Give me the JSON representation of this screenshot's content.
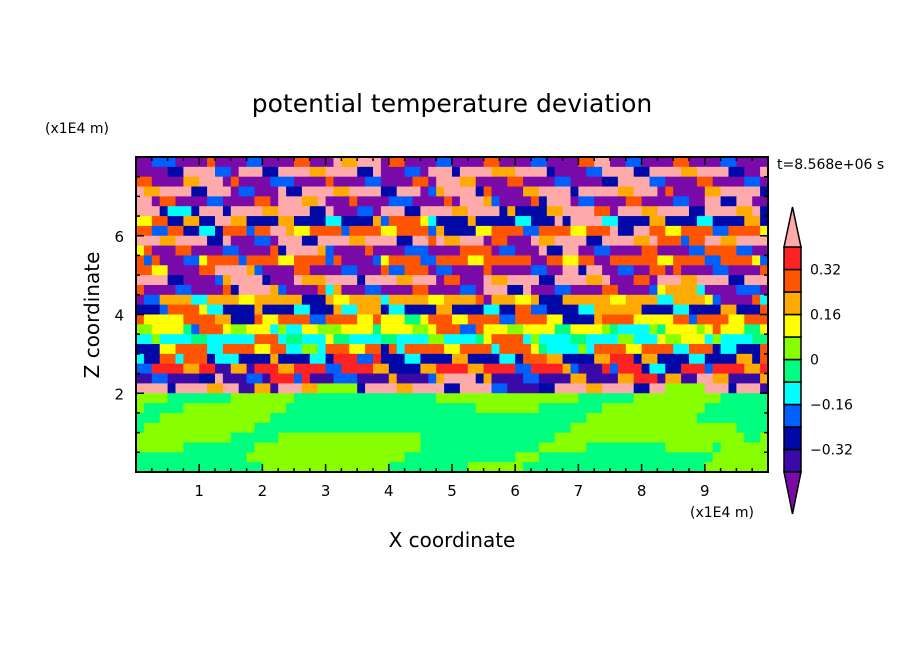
{
  "chart_data": {
    "type": "heatmap",
    "title": "potential temperature deviation",
    "xlabel": "X coordinate",
    "ylabel": "Z coordinate",
    "x_unit_label": "(x1E4 m)",
    "y_unit_label": "(x1E4 m)",
    "time_label": "t=8.568e+06 s",
    "xlim": [
      0,
      10
    ],
    "ylim": [
      0,
      8
    ],
    "x_ticks": [
      "1",
      "2",
      "3",
      "4",
      "5",
      "6",
      "7",
      "8",
      "9"
    ],
    "x_tick_values": [
      1,
      2,
      3,
      4,
      5,
      6,
      7,
      8,
      9
    ],
    "y_ticks": [
      "2",
      "4",
      "6"
    ],
    "y_tick_values": [
      2,
      4,
      6
    ],
    "colorbar": {
      "levels": [
        -0.4,
        -0.32,
        -0.24,
        -0.16,
        -0.08,
        0,
        0.08,
        0.16,
        0.24,
        0.32,
        0.4
      ],
      "colors": [
        "#7b0ba8",
        "#3a0aa8",
        "#0008a8",
        "#0060ff",
        "#00ffff",
        "#00ff80",
        "#88ff00",
        "#ffff00",
        "#ffaa00",
        "#ff5500",
        "#ff2222",
        "#ffaaaa"
      ],
      "tick_labels": [
        "0.32",
        "0.16",
        "0",
        "-0.16",
        "-0.32"
      ],
      "tick_values": [
        0.32,
        0.16,
        0,
        -0.16,
        -0.32
      ],
      "extend": "both"
    },
    "z_row_step": 0.25,
    "row_profile_top_down": [
      -0.45,
      0.45,
      -0.45,
      0.45,
      -0.45,
      0.45,
      -0.3,
      0.3,
      0.45,
      -0.45,
      0.3,
      -0.45,
      0.45,
      -0.45,
      0.2,
      -0.3,
      0.3,
      0.1,
      -0.1,
      0.25,
      -0.3,
      0.35,
      -0.35,
      0.45,
      0.02,
      0.02,
      0.02,
      0.02,
      0.02,
      0.02,
      0.02,
      0.02
    ],
    "lower_layer_top_z": 1.9,
    "lower_layer_value_range": [
      -0.05,
      0.05
    ]
  }
}
